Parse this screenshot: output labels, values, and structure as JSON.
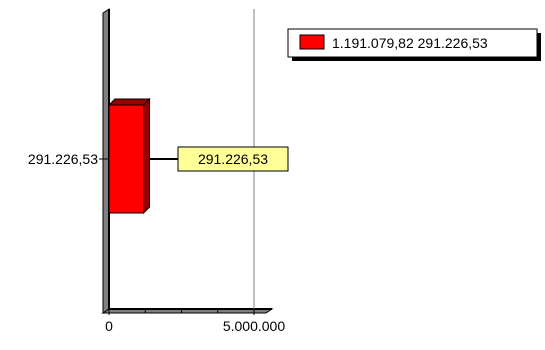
{
  "chart_data": {
    "type": "bar",
    "orientation": "horizontal",
    "categories": [
      "291.226,53"
    ],
    "series": [
      {
        "name": "1.191.079,82 291.226,53",
        "values": [
          1191079.82
        ],
        "color": "#ff0000"
      }
    ],
    "data_labels": [
      "291.226,53"
    ],
    "x_ticks": [
      {
        "value": 0,
        "label": "0"
      },
      {
        "value": 5000000,
        "label": "5.000.000"
      }
    ],
    "xlim": [
      0,
      5000000
    ],
    "grid": true,
    "legend_position": "top-right",
    "title": "",
    "xlabel": "",
    "ylabel": "",
    "colors": {
      "bar": "#ff0000",
      "bar_depth": "#990000",
      "data_label_bg": "#ffff99",
      "axis": "#000000",
      "gridline": "#808080"
    }
  }
}
